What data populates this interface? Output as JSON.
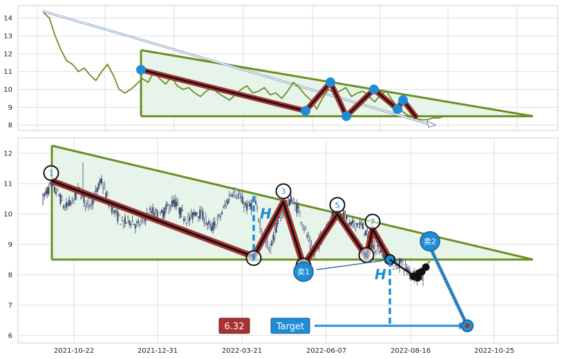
{
  "chart_data": [
    {
      "type": "line",
      "panel": "overview",
      "ylim": [
        7.7,
        14.7
      ],
      "yticks": [
        "8",
        "9",
        "10",
        "11",
        "12",
        "13",
        "14"
      ],
      "grid": true,
      "series": [
        {
          "values": [
            14.3,
            14.0,
            13.0,
            12.2,
            11.6,
            11.4,
            11.0,
            11.2,
            10.8,
            10.5,
            11.0,
            11.4,
            10.8,
            10.0,
            9.8,
            10.0,
            10.3,
            10.6,
            10.4,
            11.0,
            10.6,
            10.3,
            10.7,
            10.2,
            10.0,
            10.1,
            9.8,
            9.6,
            9.9,
            10.1,
            9.8,
            9.6,
            9.4,
            9.7,
            10.0,
            10.2,
            9.8,
            9.9,
            10.1,
            9.7,
            9.8,
            9.5,
            9.9,
            10.4,
            10.1,
            9.7,
            9.4,
            8.9,
            9.5,
            10.0,
            9.8,
            9.9,
            10.1,
            9.6,
            9.8,
            9.9,
            9.6,
            9.3,
            9.7,
            9.9,
            9.4,
            9.0,
            8.7,
            8.5,
            8.4,
            8.3,
            8.3,
            8.4,
            8.4,
            8.5
          ]
        }
      ],
      "pattern": {
        "triangle": {
          "top_start": 12.2,
          "top_end": 8.5,
          "base": 8.5
        },
        "trend_arrow": {
          "start": 14.4,
          "end": 8.0
        },
        "wave_points": [
          11.1,
          8.8,
          10.4,
          8.5,
          10.0,
          8.9,
          9.4,
          8.4
        ]
      }
    },
    {
      "type": "candlestick",
      "panel": "detail",
      "ylim": [
        5.75,
        12.5
      ],
      "yticks": [
        "6",
        "7",
        "8",
        "9",
        "10",
        "11",
        "12"
      ],
      "xticks": [
        "2021-10-22",
        "2021-12-31",
        "2022-03-21",
        "2022-06-07",
        "2022-08-16",
        "2022-10-25"
      ],
      "grid": true,
      "price_path": [
        10.5,
        10.9,
        10.7,
        10.2,
        10.4,
        10.8,
        10.3,
        10.5,
        11.1,
        10.4,
        10.0,
        9.7,
        9.8,
        9.6,
        9.9,
        10.1,
        9.9,
        10.2,
        10.4,
        10.0,
        9.8,
        10.1,
        9.9,
        9.5,
        9.8,
        10.3,
        10.8,
        10.5,
        10.2,
        10.4,
        9.4,
        8.8,
        9.6,
        10.2,
        10.5,
        10.1,
        9.4,
        8.6,
        9.2,
        9.7,
        10.1,
        10.0,
        9.6,
        9.7,
        9.5,
        8.9,
        8.9,
        8.6,
        8.3,
        8.4,
        8.1,
        8.0,
        7.9
      ],
      "pattern": {
        "triangle": {
          "top_start": 12.25,
          "top_end": 8.5,
          "base": 8.5
        },
        "wave_points": [
          11.1,
          8.6,
          10.4,
          8.3,
          10.0,
          8.6,
          9.5,
          8.5
        ],
        "wave_labels": [
          "1",
          "2",
          "3",
          "4",
          "5",
          "6",
          "7"
        ],
        "H_label": "H",
        "target_label": "Target",
        "target_value": "6.32",
        "sell_points": [
          {
            "label": "卖1",
            "value": 8.1
          },
          {
            "label": "卖2",
            "value": 9.1
          }
        ],
        "breakout_value": 8.45,
        "target_price": 6.32
      }
    }
  ],
  "colors": {
    "triangle_edge": "#6b8e23",
    "triangle_fill": "#e3f2e6",
    "wave_outer": "#a83232",
    "wave_inner": "#111111",
    "marker": "#1f8dd6",
    "price_line": "#6b8e23",
    "candles": "#3a4a6b",
    "target_badge": "#1f8dd6",
    "price_badge": "#a83232"
  }
}
